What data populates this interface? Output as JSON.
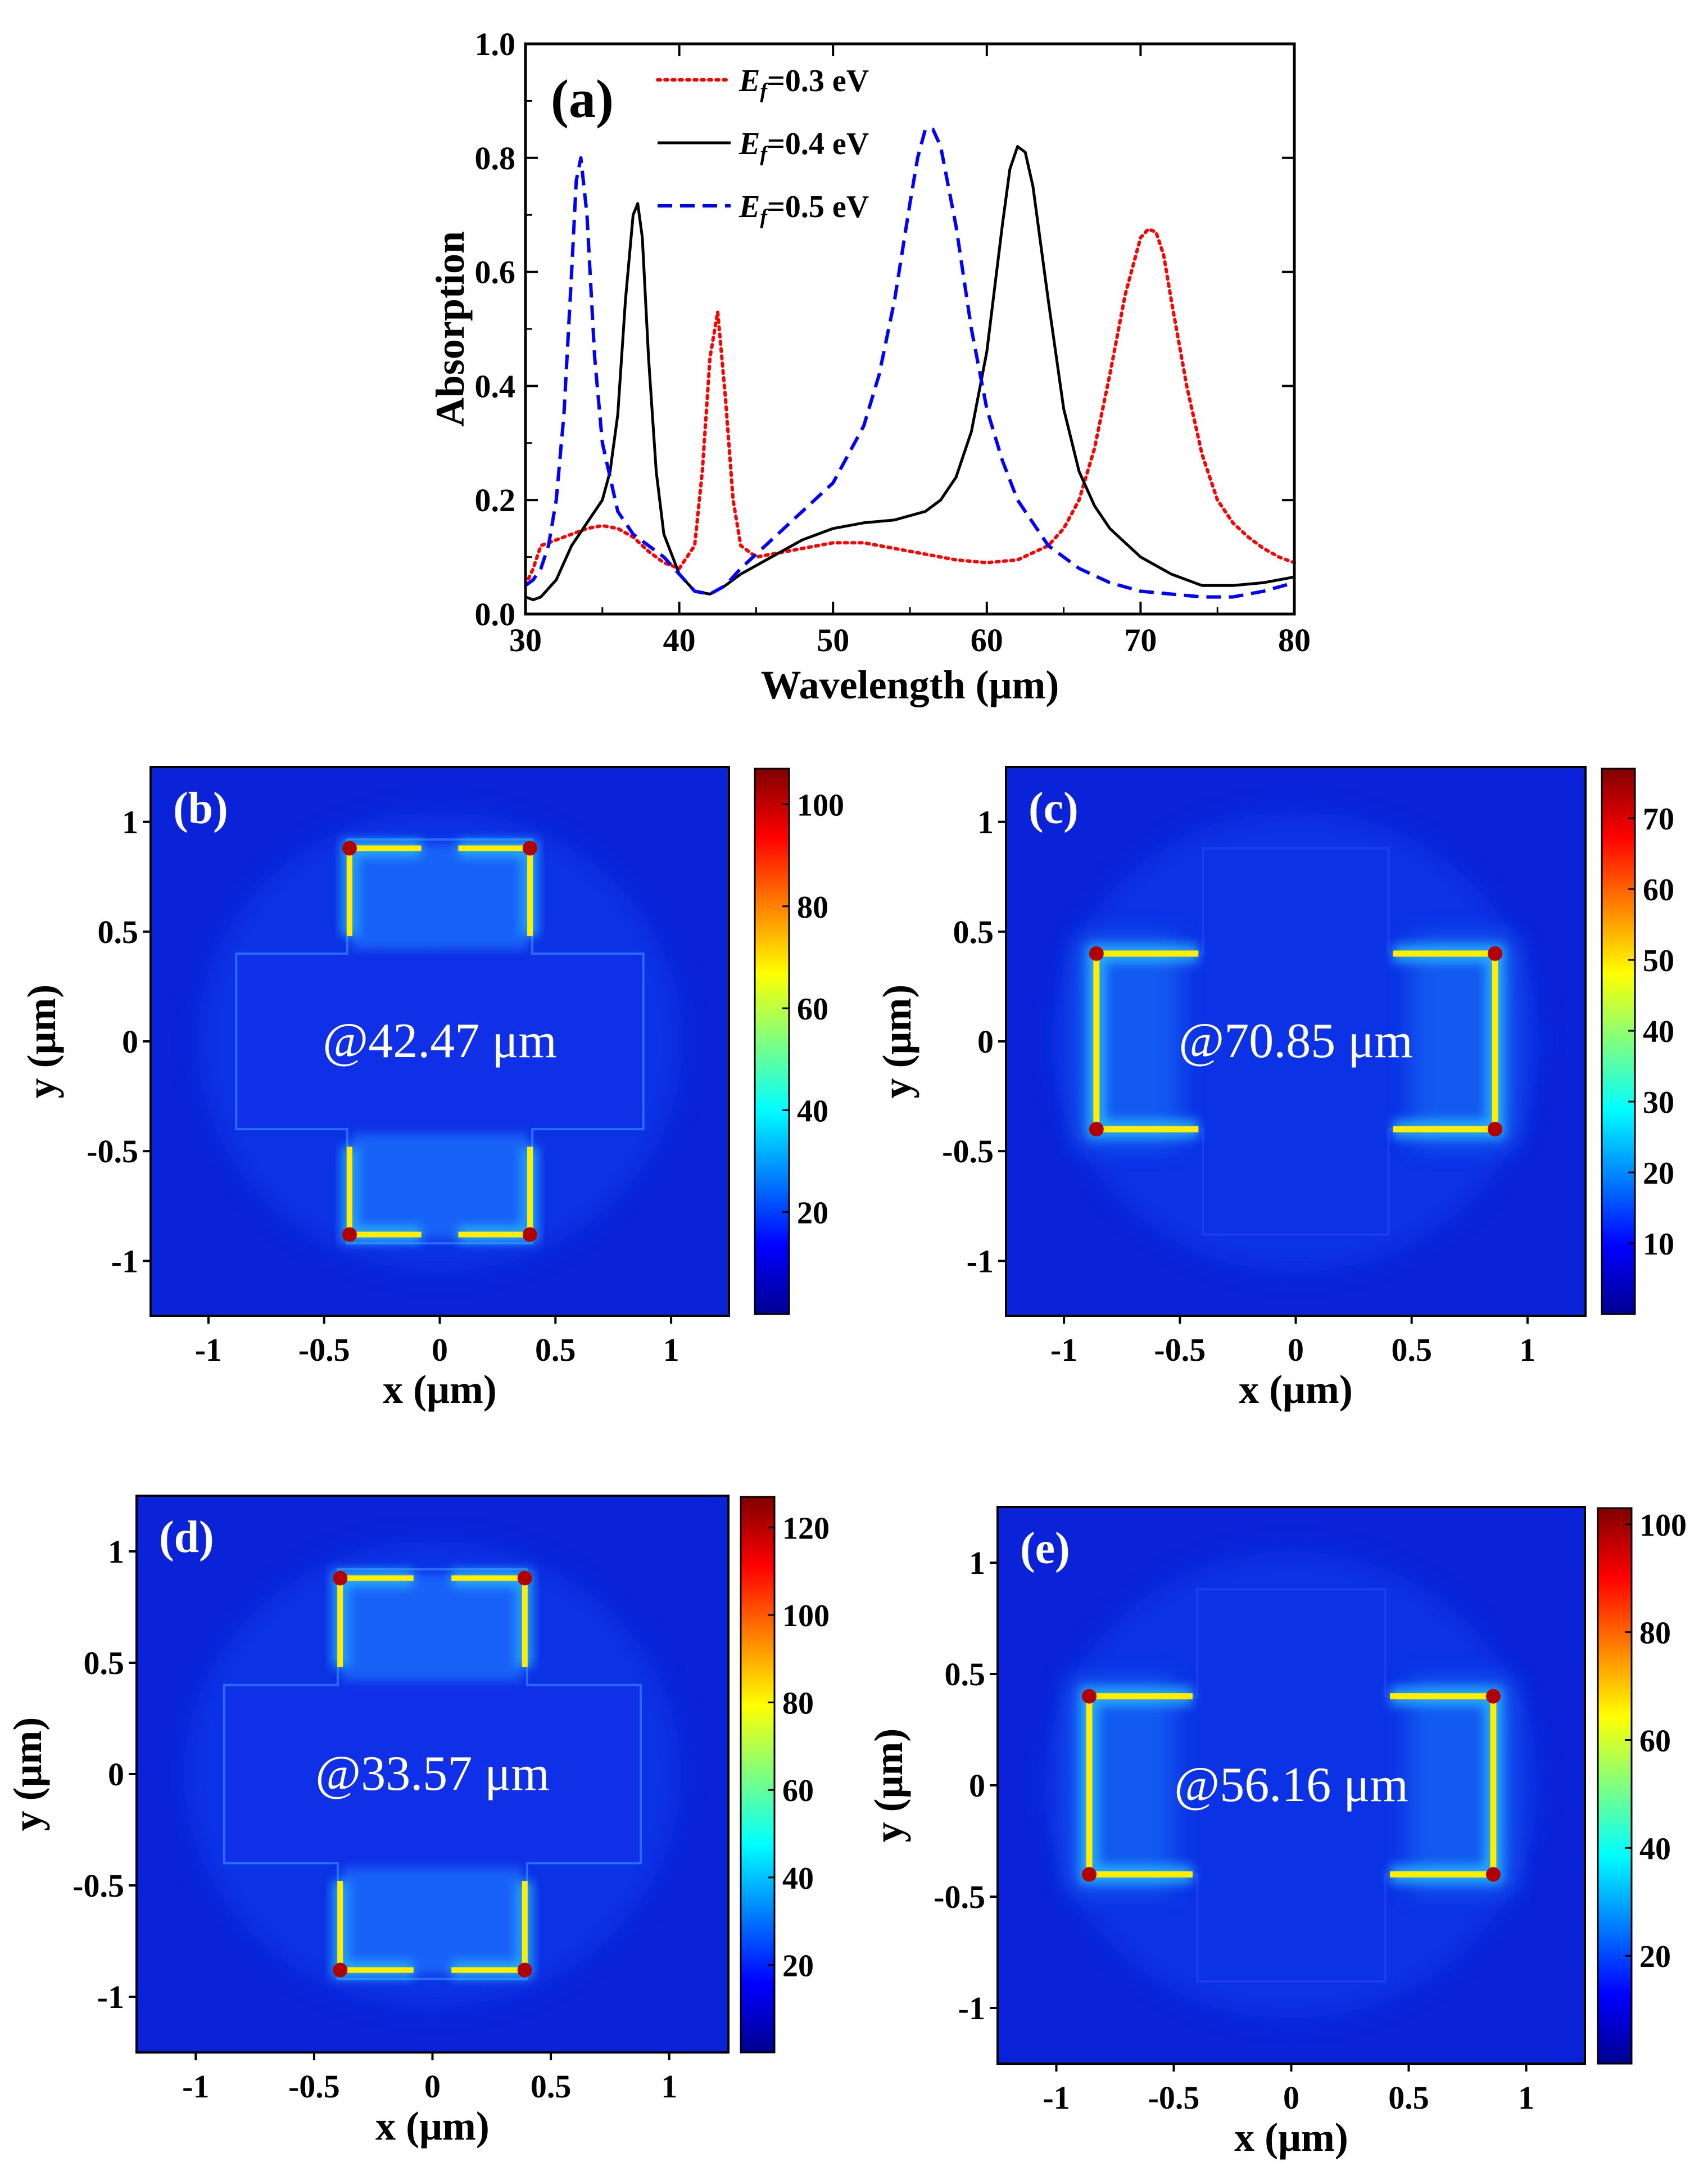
{
  "chart_data": [
    {
      "type": "line",
      "panel_label": "(a)",
      "xlabel": "Wavelength (μm)",
      "ylabel": "Absorption",
      "xlim": [
        30,
        80
      ],
      "ylim": [
        0,
        1.0
      ],
      "xticks": [
        "30",
        "40",
        "50",
        "60",
        "70",
        "80"
      ],
      "yticks": [
        "0.0",
        "0.2",
        "0.4",
        "0.6",
        "0.8",
        "1.0"
      ],
      "legend_position": "top-left",
      "series": [
        {
          "name": "Ef=0.3 eV",
          "legend_sub_base": "E",
          "legend_sub": "f",
          "legend_rest": "=0.3 eV",
          "color": "#ff0000",
          "style": "dotted",
          "x": [
            30,
            30.5,
            31,
            32,
            33,
            34,
            35,
            36,
            37,
            38,
            39,
            40,
            41,
            41.5,
            42,
            42.5,
            43,
            43.5,
            44,
            45,
            46,
            48,
            50,
            52,
            54,
            56,
            58,
            60,
            62,
            64,
            65,
            66,
            67,
            68,
            69,
            70,
            70.5,
            71,
            71.5,
            72,
            73,
            74,
            75,
            76,
            77,
            78,
            79,
            80
          ],
          "y": [
            0.05,
            0.08,
            0.12,
            0.13,
            0.14,
            0.15,
            0.155,
            0.15,
            0.135,
            0.11,
            0.09,
            0.08,
            0.12,
            0.25,
            0.45,
            0.53,
            0.38,
            0.2,
            0.12,
            0.1,
            0.105,
            0.115,
            0.125,
            0.125,
            0.115,
            0.105,
            0.095,
            0.09,
            0.095,
            0.12,
            0.15,
            0.2,
            0.29,
            0.42,
            0.56,
            0.66,
            0.675,
            0.67,
            0.63,
            0.55,
            0.4,
            0.28,
            0.2,
            0.16,
            0.135,
            0.115,
            0.1,
            0.09
          ]
        },
        {
          "name": "Ef=0.4 eV",
          "legend_sub_base": "E",
          "legend_sub": "f",
          "legend_rest": "=0.4 eV",
          "color": "#000000",
          "style": "solid",
          "x": [
            30,
            30.5,
            31,
            32,
            33,
            34,
            35,
            35.5,
            36,
            36.5,
            37,
            37.3,
            37.6,
            38,
            38.5,
            39,
            40,
            41,
            42,
            43,
            44,
            46,
            48,
            50,
            52,
            54,
            56,
            57,
            58,
            59,
            60,
            61,
            61.5,
            62,
            62.5,
            63,
            64,
            65,
            66,
            67,
            68,
            70,
            72,
            74,
            76,
            78,
            80
          ],
          "y": [
            0.03,
            0.025,
            0.03,
            0.06,
            0.12,
            0.16,
            0.2,
            0.25,
            0.35,
            0.55,
            0.7,
            0.72,
            0.66,
            0.45,
            0.25,
            0.14,
            0.07,
            0.04,
            0.035,
            0.05,
            0.07,
            0.1,
            0.13,
            0.15,
            0.16,
            0.165,
            0.18,
            0.2,
            0.24,
            0.32,
            0.46,
            0.68,
            0.78,
            0.82,
            0.81,
            0.75,
            0.55,
            0.36,
            0.25,
            0.19,
            0.15,
            0.1,
            0.07,
            0.05,
            0.05,
            0.055,
            0.065
          ]
        },
        {
          "name": "Ef=0.5 eV",
          "legend_sub_base": "E",
          "legend_sub": "f",
          "legend_rest": "=0.5 eV",
          "color": "#0000ff",
          "style": "dashed",
          "x": [
            30,
            30.5,
            31,
            31.5,
            32,
            32.5,
            33,
            33.3,
            33.6,
            34,
            34.5,
            35,
            36,
            37,
            38,
            39,
            40,
            41,
            42,
            43,
            44,
            46,
            48,
            50,
            52,
            53,
            54,
            55,
            55.5,
            56,
            56.5,
            57,
            58,
            59,
            60,
            61,
            62,
            64,
            66,
            68,
            70,
            72,
            74,
            76,
            78,
            80
          ],
          "y": [
            0.05,
            0.06,
            0.08,
            0.12,
            0.2,
            0.35,
            0.6,
            0.76,
            0.8,
            0.7,
            0.45,
            0.3,
            0.18,
            0.14,
            0.12,
            0.1,
            0.07,
            0.04,
            0.035,
            0.05,
            0.08,
            0.13,
            0.18,
            0.23,
            0.33,
            0.42,
            0.55,
            0.72,
            0.8,
            0.85,
            0.85,
            0.82,
            0.68,
            0.5,
            0.36,
            0.27,
            0.2,
            0.12,
            0.08,
            0.055,
            0.04,
            0.035,
            0.03,
            0.03,
            0.04,
            0.055
          ]
        }
      ]
    },
    {
      "type": "heatmap",
      "panel_label": "(b)",
      "annotation": "@42.47 μm",
      "xlabel": "x (μm)",
      "ylabel": "y (μm)",
      "xticks": [
        "-1",
        "-0.5",
        "0",
        "0.5",
        "1"
      ],
      "yticks": [
        "1",
        "0.5",
        "0",
        "-0.5",
        "-1"
      ],
      "xlim": [
        -1.25,
        1.25
      ],
      "ylim": [
        -1.25,
        1.25
      ],
      "colorbar_ticks": [
        "20",
        "40",
        "60",
        "80",
        "100"
      ],
      "colorbar_range": [
        0,
        107
      ],
      "pattern": "vertical-arms"
    },
    {
      "type": "heatmap",
      "panel_label": "(c)",
      "annotation": "@70.85 μm",
      "xlabel": "x (μm)",
      "ylabel": "y (μm)",
      "xticks": [
        "-1",
        "-0.5",
        "0",
        "0.5",
        "1"
      ],
      "yticks": [
        "1",
        "0.5",
        "0",
        "-0.5",
        "-1"
      ],
      "xlim": [
        -1.25,
        1.25
      ],
      "ylim": [
        -1.25,
        1.25
      ],
      "colorbar_ticks": [
        "10",
        "20",
        "30",
        "40",
        "50",
        "60",
        "70"
      ],
      "colorbar_range": [
        0,
        77
      ],
      "pattern": "horizontal-arms"
    },
    {
      "type": "heatmap",
      "panel_label": "(d)",
      "annotation": "@33.57 μm",
      "xlabel": "x (μm)",
      "ylabel": "y (μm)",
      "xticks": [
        "-1",
        "-0.5",
        "0",
        "0.5",
        "1"
      ],
      "yticks": [
        "1",
        "0.5",
        "0",
        "-0.5",
        "-1"
      ],
      "xlim": [
        -1.25,
        1.25
      ],
      "ylim": [
        -1.25,
        1.25
      ],
      "colorbar_ticks": [
        "20",
        "40",
        "60",
        "80",
        "100",
        "120"
      ],
      "colorbar_range": [
        0,
        127
      ],
      "pattern": "vertical-arms"
    },
    {
      "type": "heatmap",
      "panel_label": "(e)",
      "annotation": "@56.16 μm",
      "xlabel": "x (μm)",
      "ylabel": "y (μm)",
      "xticks": [
        "-1",
        "-0.5",
        "0",
        "0.5",
        "1"
      ],
      "yticks": [
        "1",
        "0.5",
        "0",
        "-0.5",
        "-1"
      ],
      "xlim": [
        -1.25,
        1.25
      ],
      "ylim": [
        -1.25,
        1.25
      ],
      "colorbar_ticks": [
        "20",
        "40",
        "60",
        "80",
        "100"
      ],
      "colorbar_range": [
        0,
        103
      ],
      "pattern": "horizontal-arms"
    }
  ]
}
